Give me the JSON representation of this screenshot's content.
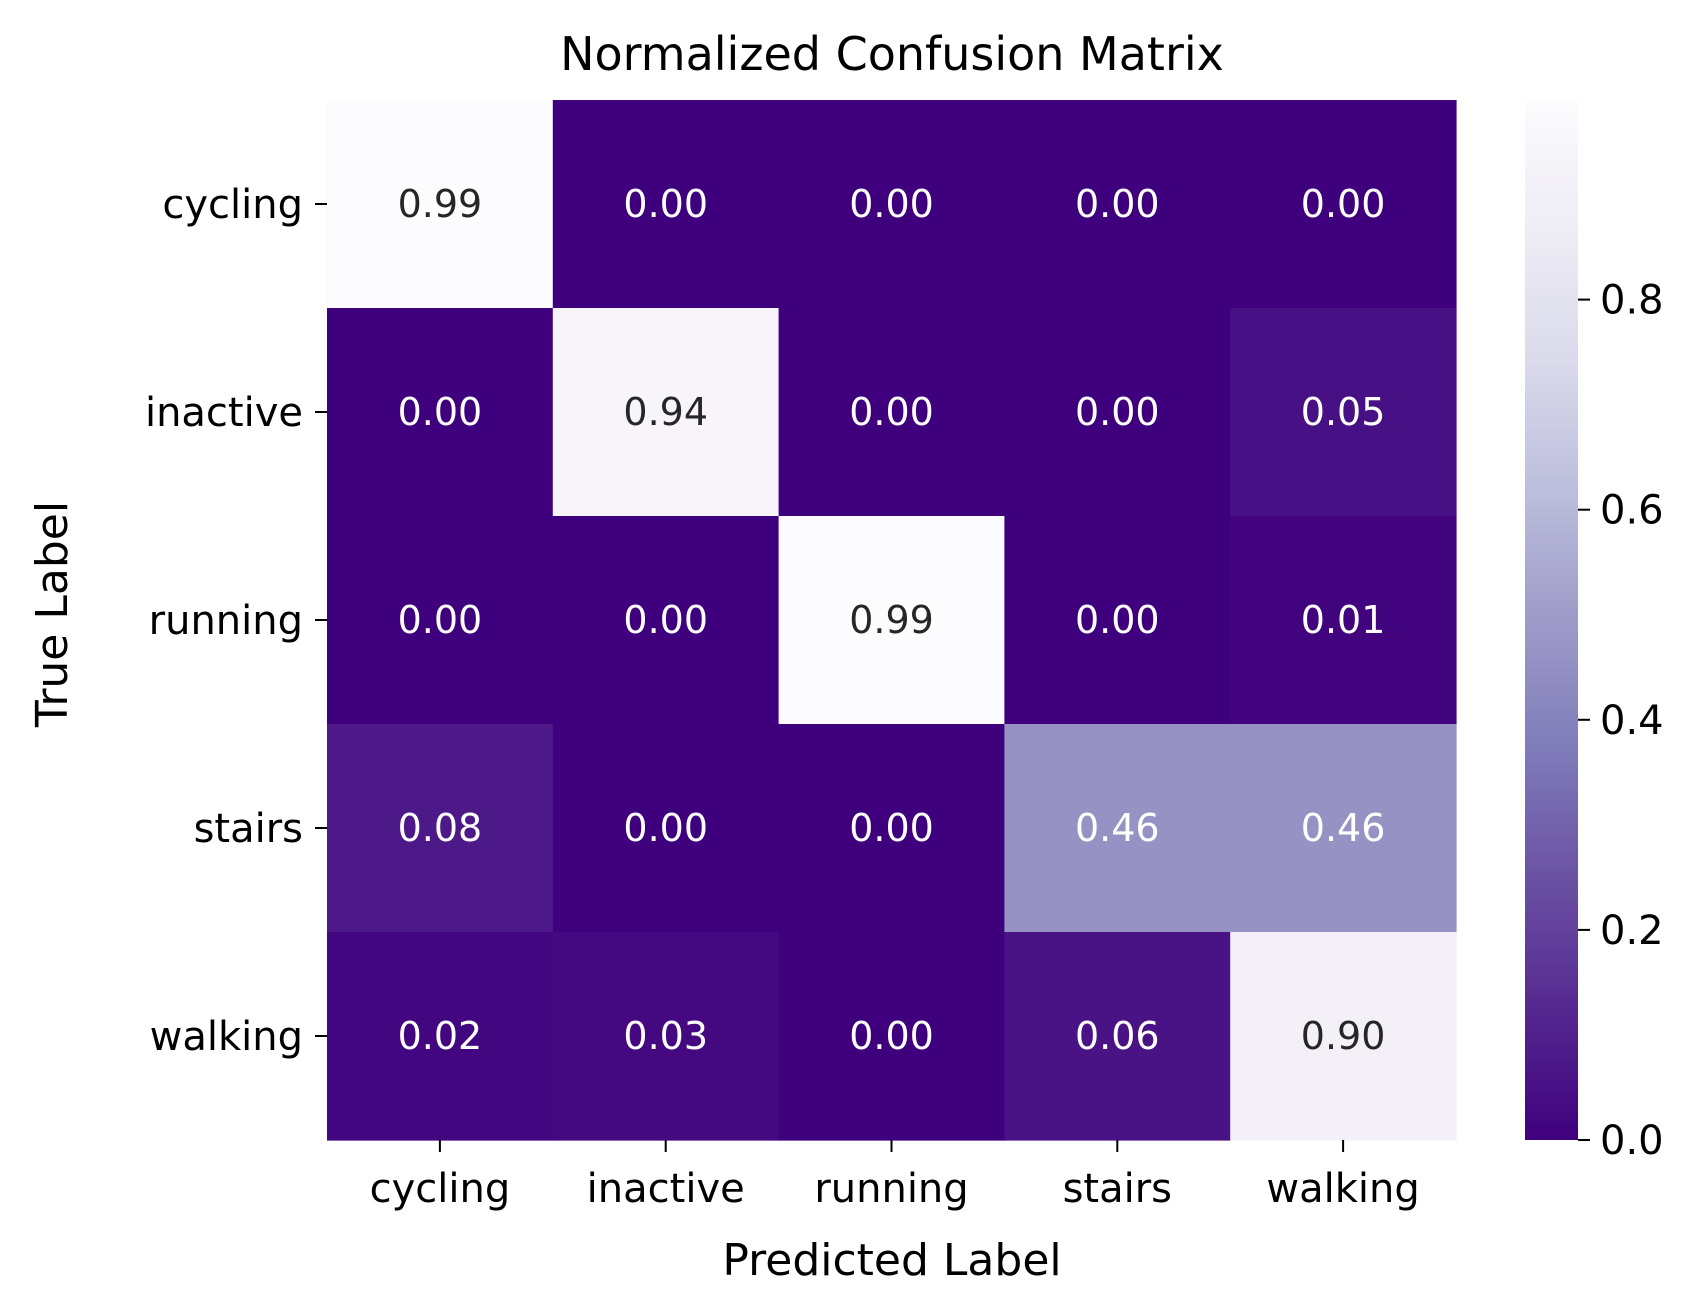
{
  "chart_data": {
    "type": "heatmap",
    "title": "Normalized Confusion Matrix",
    "xlabel": "Predicted Label",
    "ylabel": "True Label",
    "x_categories": [
      "cycling",
      "inactive",
      "running",
      "stairs",
      "walking"
    ],
    "y_categories": [
      "cycling",
      "inactive",
      "running",
      "stairs",
      "walking"
    ],
    "values": [
      [
        0.99,
        0.0,
        0.0,
        0.0,
        0.0
      ],
      [
        0.0,
        0.94,
        0.0,
        0.0,
        0.05
      ],
      [
        0.0,
        0.0,
        0.99,
        0.0,
        0.01
      ],
      [
        0.08,
        0.0,
        0.0,
        0.46,
        0.46
      ],
      [
        0.02,
        0.03,
        0.0,
        0.06,
        0.9
      ]
    ],
    "value_labels": [
      [
        "0.99",
        "0.00",
        "0.00",
        "0.00",
        "0.00"
      ],
      [
        "0.00",
        "0.94",
        "0.00",
        "0.00",
        "0.05"
      ],
      [
        "0.00",
        "0.00",
        "0.99",
        "0.00",
        "0.01"
      ],
      [
        "0.08",
        "0.00",
        "0.00",
        "0.46",
        "0.46"
      ],
      [
        "0.02",
        "0.03",
        "0.00",
        "0.06",
        "0.90"
      ]
    ],
    "colormap": "Purples_r",
    "color_low": "#3f007d",
    "color_high": "#fcfbfd",
    "text_color_dark_cell": "#ffffff",
    "text_color_light_cell": "#262626",
    "colorbar": {
      "range": [
        0.0,
        0.99
      ],
      "ticks": [
        "0.0",
        "0.2",
        "0.4",
        "0.6",
        "0.8"
      ],
      "tick_values": [
        0.0,
        0.2,
        0.4,
        0.6,
        0.8
      ]
    },
    "grid": false,
    "legend": "colorbar-right"
  }
}
